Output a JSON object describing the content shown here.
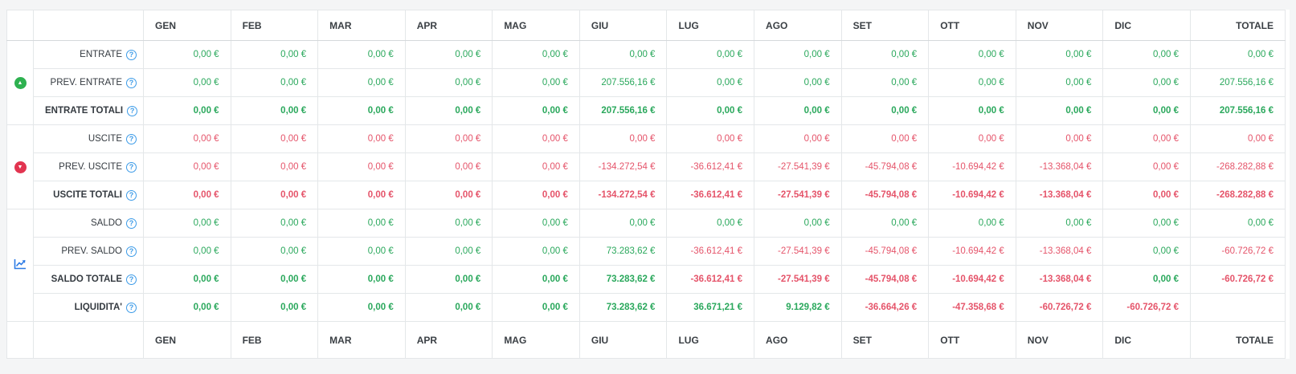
{
  "colors": {
    "positive_value": "#2aa85c",
    "negative_value": "#e5546a",
    "entrate_icon": "#2eb150",
    "uscite_icon": "#e23450",
    "saldo_chart_icon": "#2c7be5",
    "help_icon": "#3c9be8"
  },
  "glyphs": {
    "up": "▲",
    "down": "▼",
    "help": "?"
  },
  "table": {
    "months": [
      "GEN",
      "FEB",
      "MAR",
      "APR",
      "MAG",
      "GIU",
      "LUG",
      "AGO",
      "SET",
      "OTT",
      "NOV",
      "DIC"
    ],
    "total_label": "TOTALE",
    "groups": [
      {
        "name": "entrate",
        "icon": "arrow-up-circle-icon",
        "rows": [
          0,
          1,
          2
        ]
      },
      {
        "name": "uscite",
        "icon": "arrow-down-circle-icon",
        "rows": [
          3,
          4,
          5
        ]
      },
      {
        "name": "saldo",
        "icon": "chart-line-icon",
        "rows": [
          6,
          7,
          8,
          9
        ]
      }
    ],
    "rows": [
      {
        "id": "entrate",
        "label": "ENTRATE",
        "bold": false,
        "cells": [
          [
            "0,00 €",
            "g"
          ],
          [
            "0,00 €",
            "g"
          ],
          [
            "0,00 €",
            "g"
          ],
          [
            "0,00 €",
            "g"
          ],
          [
            "0,00 €",
            "g"
          ],
          [
            "0,00 €",
            "g"
          ],
          [
            "0,00 €",
            "g"
          ],
          [
            "0,00 €",
            "g"
          ],
          [
            "0,00 €",
            "g"
          ],
          [
            "0,00 €",
            "g"
          ],
          [
            "0,00 €",
            "g"
          ],
          [
            "0,00 €",
            "g"
          ],
          [
            "0,00 €",
            "g"
          ]
        ]
      },
      {
        "id": "prev-entrate",
        "label": "PREV. ENTRATE",
        "bold": false,
        "cells": [
          [
            "0,00 €",
            "g"
          ],
          [
            "0,00 €",
            "g"
          ],
          [
            "0,00 €",
            "g"
          ],
          [
            "0,00 €",
            "g"
          ],
          [
            "0,00 €",
            "g"
          ],
          [
            "207.556,16 €",
            "g"
          ],
          [
            "0,00 €",
            "g"
          ],
          [
            "0,00 €",
            "g"
          ],
          [
            "0,00 €",
            "g"
          ],
          [
            "0,00 €",
            "g"
          ],
          [
            "0,00 €",
            "g"
          ],
          [
            "0,00 €",
            "g"
          ],
          [
            "207.556,16 €",
            "g"
          ]
        ]
      },
      {
        "id": "entrate-totali",
        "label": "ENTRATE TOTALI",
        "bold": true,
        "cells": [
          [
            "0,00 €",
            "g"
          ],
          [
            "0,00 €",
            "g"
          ],
          [
            "0,00 €",
            "g"
          ],
          [
            "0,00 €",
            "g"
          ],
          [
            "0,00 €",
            "g"
          ],
          [
            "207.556,16 €",
            "g"
          ],
          [
            "0,00 €",
            "g"
          ],
          [
            "0,00 €",
            "g"
          ],
          [
            "0,00 €",
            "g"
          ],
          [
            "0,00 €",
            "g"
          ],
          [
            "0,00 €",
            "g"
          ],
          [
            "0,00 €",
            "g"
          ],
          [
            "207.556,16 €",
            "g"
          ]
        ]
      },
      {
        "id": "uscite",
        "label": "USCITE",
        "bold": false,
        "cells": [
          [
            "0,00 €",
            "r"
          ],
          [
            "0,00 €",
            "r"
          ],
          [
            "0,00 €",
            "r"
          ],
          [
            "0,00 €",
            "r"
          ],
          [
            "0,00 €",
            "r"
          ],
          [
            "0,00 €",
            "r"
          ],
          [
            "0,00 €",
            "r"
          ],
          [
            "0,00 €",
            "r"
          ],
          [
            "0,00 €",
            "r"
          ],
          [
            "0,00 €",
            "r"
          ],
          [
            "0,00 €",
            "r"
          ],
          [
            "0,00 €",
            "r"
          ],
          [
            "0,00 €",
            "r"
          ]
        ]
      },
      {
        "id": "prev-uscite",
        "label": "PREV. USCITE",
        "bold": false,
        "cells": [
          [
            "0,00 €",
            "r"
          ],
          [
            "0,00 €",
            "r"
          ],
          [
            "0,00 €",
            "r"
          ],
          [
            "0,00 €",
            "r"
          ],
          [
            "0,00 €",
            "r"
          ],
          [
            "-134.272,54 €",
            "r"
          ],
          [
            "-36.612,41 €",
            "r"
          ],
          [
            "-27.541,39 €",
            "r"
          ],
          [
            "-45.794,08 €",
            "r"
          ],
          [
            "-10.694,42 €",
            "r"
          ],
          [
            "-13.368,04 €",
            "r"
          ],
          [
            "0,00 €",
            "r"
          ],
          [
            "-268.282,88 €",
            "r"
          ]
        ]
      },
      {
        "id": "uscite-totali",
        "label": "USCITE TOTALI",
        "bold": true,
        "cells": [
          [
            "0,00 €",
            "r"
          ],
          [
            "0,00 €",
            "r"
          ],
          [
            "0,00 €",
            "r"
          ],
          [
            "0,00 €",
            "r"
          ],
          [
            "0,00 €",
            "r"
          ],
          [
            "-134.272,54 €",
            "r"
          ],
          [
            "-36.612,41 €",
            "r"
          ],
          [
            "-27.541,39 €",
            "r"
          ],
          [
            "-45.794,08 €",
            "r"
          ],
          [
            "-10.694,42 €",
            "r"
          ],
          [
            "-13.368,04 €",
            "r"
          ],
          [
            "0,00 €",
            "r"
          ],
          [
            "-268.282,88 €",
            "r"
          ]
        ]
      },
      {
        "id": "saldo",
        "label": "SALDO",
        "bold": false,
        "cells": [
          [
            "0,00 €",
            "g"
          ],
          [
            "0,00 €",
            "g"
          ],
          [
            "0,00 €",
            "g"
          ],
          [
            "0,00 €",
            "g"
          ],
          [
            "0,00 €",
            "g"
          ],
          [
            "0,00 €",
            "g"
          ],
          [
            "0,00 €",
            "g"
          ],
          [
            "0,00 €",
            "g"
          ],
          [
            "0,00 €",
            "g"
          ],
          [
            "0,00 €",
            "g"
          ],
          [
            "0,00 €",
            "g"
          ],
          [
            "0,00 €",
            "g"
          ],
          [
            "0,00 €",
            "g"
          ]
        ]
      },
      {
        "id": "prev-saldo",
        "label": "PREV. SALDO",
        "bold": false,
        "cells": [
          [
            "0,00 €",
            "g"
          ],
          [
            "0,00 €",
            "g"
          ],
          [
            "0,00 €",
            "g"
          ],
          [
            "0,00 €",
            "g"
          ],
          [
            "0,00 €",
            "g"
          ],
          [
            "73.283,62 €",
            "g"
          ],
          [
            "-36.612,41 €",
            "r"
          ],
          [
            "-27.541,39 €",
            "r"
          ],
          [
            "-45.794,08 €",
            "r"
          ],
          [
            "-10.694,42 €",
            "r"
          ],
          [
            "-13.368,04 €",
            "r"
          ],
          [
            "0,00 €",
            "g"
          ],
          [
            "-60.726,72 €",
            "r"
          ]
        ]
      },
      {
        "id": "saldo-totale",
        "label": "SALDO TOTALE",
        "bold": true,
        "cells": [
          [
            "0,00 €",
            "g"
          ],
          [
            "0,00 €",
            "g"
          ],
          [
            "0,00 €",
            "g"
          ],
          [
            "0,00 €",
            "g"
          ],
          [
            "0,00 €",
            "g"
          ],
          [
            "73.283,62 €",
            "g"
          ],
          [
            "-36.612,41 €",
            "r"
          ],
          [
            "-27.541,39 €",
            "r"
          ],
          [
            "-45.794,08 €",
            "r"
          ],
          [
            "-10.694,42 €",
            "r"
          ],
          [
            "-13.368,04 €",
            "r"
          ],
          [
            "0,00 €",
            "g"
          ],
          [
            "-60.726,72 €",
            "r"
          ]
        ]
      },
      {
        "id": "liquidita",
        "label": "LIQUIDITA'",
        "bold": true,
        "cells": [
          [
            "0,00 €",
            "g"
          ],
          [
            "0,00 €",
            "g"
          ],
          [
            "0,00 €",
            "g"
          ],
          [
            "0,00 €",
            "g"
          ],
          [
            "0,00 €",
            "g"
          ],
          [
            "73.283,62 €",
            "g"
          ],
          [
            "36.671,21 €",
            "g"
          ],
          [
            "9.129,82 €",
            "g"
          ],
          [
            "-36.664,26 €",
            "r"
          ],
          [
            "-47.358,68 €",
            "r"
          ],
          [
            "-60.726,72 €",
            "r"
          ],
          [
            "-60.726,72 €",
            "r"
          ],
          [
            "",
            ""
          ]
        ]
      }
    ]
  }
}
